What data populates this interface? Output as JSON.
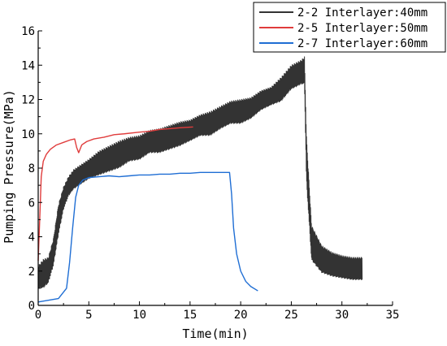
{
  "chart_data": {
    "type": "line",
    "xlabel": "Time(min)",
    "ylabel": "Pumping Pressure(MPa)",
    "xlim": [
      0,
      35
    ],
    "ylim": [
      0,
      16
    ],
    "xticks": [
      "0",
      "5",
      "10",
      "15",
      "20",
      "25",
      "30",
      "35"
    ],
    "yticks": [
      "0",
      "2",
      "4",
      "6",
      "8",
      "10",
      "12",
      "14",
      "16"
    ],
    "grid": false,
    "legend_position": "top-right",
    "series": [
      {
        "name": "2-2 Interlayer:40mm",
        "color": "#333333",
        "style": "noisy-band",
        "x": [
          0,
          0.5,
          1,
          1.5,
          2,
          2.5,
          3,
          3.5,
          4,
          5,
          6,
          7,
          8,
          9,
          10,
          11,
          12,
          13,
          14,
          15,
          16,
          17,
          18,
          19,
          20,
          21,
          22,
          23,
          24,
          25,
          26,
          26.3,
          26.5,
          27,
          28,
          29,
          30,
          31,
          32
        ],
        "low": [
          0.9,
          0.9,
          1.2,
          2.2,
          4.0,
          5.5,
          6.3,
          6.7,
          6.9,
          7.3,
          7.5,
          7.7,
          7.9,
          8.3,
          8.4,
          8.8,
          8.8,
          9.0,
          9.2,
          9.5,
          9.8,
          9.8,
          10.2,
          10.5,
          10.5,
          10.8,
          11.3,
          11.6,
          11.8,
          12.5,
          12.8,
          12.8,
          7.0,
          2.5,
          1.8,
          1.6,
          1.5,
          1.4,
          1.4
        ],
        "high": [
          2.4,
          2.8,
          2.9,
          4.0,
          6.0,
          7.0,
          7.6,
          8.0,
          8.2,
          8.6,
          9.1,
          9.4,
          9.7,
          9.9,
          10.0,
          10.3,
          10.4,
          10.6,
          10.8,
          10.9,
          11.2,
          11.4,
          11.7,
          12.0,
          12.1,
          12.2,
          12.6,
          12.8,
          13.4,
          14.1,
          14.4,
          14.6,
          10.0,
          4.8,
          3.6,
          3.2,
          3.0,
          2.9,
          2.9
        ]
      },
      {
        "name": "2-5 Interlayer:50mm",
        "color": "#e03c3c",
        "style": "line",
        "x": [
          0,
          0.15,
          0.3,
          0.5,
          0.8,
          1.2,
          1.8,
          2.5,
          3.2,
          3.6,
          3.8,
          4.0,
          4.3,
          4.8,
          5.5,
          6.5,
          7.5,
          8.5,
          10,
          11,
          12,
          13,
          14,
          15.3
        ],
        "y": [
          2.6,
          5.0,
          7.5,
          8.4,
          8.8,
          9.1,
          9.35,
          9.5,
          9.65,
          9.7,
          9.2,
          8.9,
          9.35,
          9.55,
          9.7,
          9.8,
          9.95,
          10.0,
          10.1,
          10.15,
          10.25,
          10.3,
          10.35,
          10.4
        ]
      },
      {
        "name": "2-7 Interlayer:60mm",
        "color": "#1f6ed4",
        "style": "line",
        "x": [
          0,
          1,
          2,
          2.8,
          3.1,
          3.4,
          3.7,
          4.0,
          4.4,
          5,
          6,
          7,
          8,
          9,
          10,
          11,
          12,
          13,
          14,
          15,
          16,
          17,
          18,
          18.9,
          19.1,
          19.3,
          19.6,
          20,
          20.5,
          21,
          21.7
        ],
        "y": [
          0.2,
          0.3,
          0.4,
          1.0,
          2.5,
          4.5,
          6.3,
          7.0,
          7.3,
          7.45,
          7.5,
          7.55,
          7.5,
          7.55,
          7.6,
          7.6,
          7.65,
          7.65,
          7.7,
          7.7,
          7.75,
          7.75,
          7.75,
          7.75,
          6.5,
          4.5,
          3.0,
          2.0,
          1.4,
          1.1,
          0.85
        ]
      }
    ]
  }
}
